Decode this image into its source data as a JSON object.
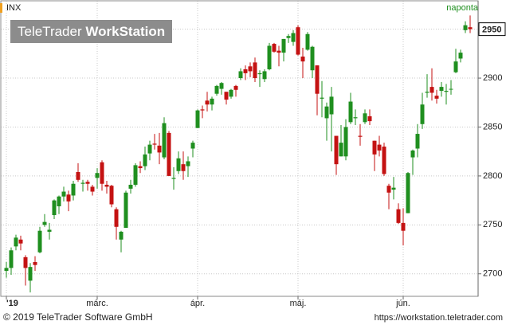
{
  "chart_data": {
    "type": "candlestick",
    "symbol": "INX",
    "interval": "naponta",
    "logo": [
      "TeleTrader",
      "WorkStation"
    ],
    "footer_left": "© 2019 TeleTrader Software GmbH",
    "footer_right": "https://workstation.teletrader.com",
    "up_color": "#1f8f1f",
    "down_color": "#c41212",
    "grid": true,
    "ylim": [
      2677,
      2979
    ],
    "yticks": [
      2700,
      2750,
      2800,
      2850,
      2900,
      2950
    ],
    "categories": [
      "'19",
      null,
      null,
      null,
      null,
      null,
      null,
      null,
      null,
      null,
      null,
      null,
      null,
      null,
      null,
      null,
      null,
      null,
      null,
      "márc.",
      null,
      null,
      null,
      null,
      null,
      null,
      null,
      null,
      null,
      null,
      null,
      null,
      null,
      null,
      null,
      null,
      null,
      null,
      null,
      null,
      "ápr.",
      null,
      null,
      null,
      null,
      null,
      null,
      null,
      null,
      null,
      null,
      null,
      null,
      null,
      null,
      null,
      null,
      null,
      null,
      null,
      null,
      "máj.",
      null,
      null,
      null,
      null,
      null,
      null,
      null,
      null,
      null,
      null,
      null,
      null,
      null,
      null,
      null,
      null,
      null,
      null,
      null,
      null,
      null,
      "jún.",
      null,
      null,
      null,
      null,
      null,
      null,
      null,
      null,
      null,
      null,
      null,
      null,
      null,
      null
    ],
    "open": [
      2703,
      2706,
      2728,
      2735,
      2717,
      2693,
      2712,
      2722,
      2750,
      2743,
      2760,
      2769,
      2779,
      2781,
      2780,
      2804,
      2792,
      2794,
      2789,
      2798,
      2814,
      2791,
      2790,
      2766,
      2735,
      2747,
      2787,
      2791,
      2810,
      2810,
      2823,
      2833,
      2831,
      2819,
      2844,
      2797,
      2805,
      2812,
      2810,
      2828,
      2849,
      2868,
      2877,
      2873,
      2884,
      2889,
      2886,
      2881,
      2892,
      2900,
      2909,
      2912,
      2916,
      2904,
      2899,
      2909,
      2935,
      2928,
      2926,
      2941,
      2937,
      2952,
      2922,
      2929,
      2908,
      2913,
      2879,
      2859,
      2863,
      2841,
      2820,
      2820,
      2855,
      2859,
      2841,
      2855,
      2861,
      2836,
      2832,
      2830,
      2790,
      2786,
      2766,
      2752,
      2762,
      2819,
      2828,
      2853,
      2885,
      2891,
      2882,
      2887,
      2886,
      2889,
      2906,
      2920,
      2949,
      2952
    ],
    "high": [
      2712,
      2727,
      2740,
      2739,
      2719,
      2711,
      2718,
      2748,
      2761,
      2752,
      2776,
      2780,
      2789,
      2785,
      2795,
      2813,
      2796,
      2796,
      2791,
      2808,
      2816,
      2795,
      2791,
      2768,
      2744,
      2785,
      2796,
      2813,
      2815,
      2830,
      2836,
      2843,
      2844,
      2860,
      2846,
      2809,
      2825,
      2825,
      2820,
      2836,
      2868,
      2872,
      2886,
      2881,
      2893,
      2896,
      2886,
      2889,
      2893,
      2910,
      2913,
      2916,
      2921,
      2908,
      2909,
      2936,
      2936,
      2933,
      2940,
      2945,
      2949,
      2954,
      2931,
      2947,
      2933,
      2913,
      2897,
      2875,
      2891,
      2841,
      2852,
      2858,
      2885,
      2868,
      2853,
      2868,
      2868,
      2836,
      2841,
      2834,
      2792,
      2799,
      2772,
      2767,
      2804,
      2827,
      2853,
      2885,
      2904,
      2910,
      2888,
      2896,
      2894,
      2898,
      2930,
      2929,
      2958,
      2964
    ],
    "low": [
      2696,
      2699,
      2724,
      2724,
      2688,
      2681,
      2703,
      2721,
      2748,
      2735,
      2756,
      2761,
      2774,
      2764,
      2775,
      2794,
      2784,
      2785,
      2780,
      2787,
      2785,
      2782,
      2768,
      2735,
      2722,
      2747,
      2782,
      2789,
      2803,
      2806,
      2816,
      2827,
      2812,
      2817,
      2800,
      2786,
      2802,
      2796,
      2799,
      2819,
      2849,
      2859,
      2866,
      2867,
      2882,
      2883,
      2873,
      2879,
      2881,
      2898,
      2898,
      2901,
      2896,
      2891,
      2896,
      2908,
      2926,
      2912,
      2917,
      2936,
      2933,
      2923,
      2900,
      2928,
      2900,
      2862,
      2860,
      2836,
      2825,
      2801,
      2820,
      2816,
      2853,
      2852,
      2831,
      2853,
      2852,
      2805,
      2820,
      2800,
      2766,
      2776,
      2751,
      2729,
      2762,
      2801,
      2819,
      2848,
      2880,
      2877,
      2874,
      2881,
      2873,
      2883,
      2905,
      2916,
      2946,
      2946
    ],
    "close": [
      2706,
      2724,
      2737,
      2731,
      2706,
      2707,
      2709,
      2744,
      2753,
      2745,
      2775,
      2779,
      2784,
      2774,
      2792,
      2796,
      2793,
      2792,
      2784,
      2803,
      2792,
      2789,
      2771,
      2748,
      2743,
      2783,
      2791,
      2811,
      2808,
      2822,
      2832,
      2832,
      2824,
      2854,
      2800,
      2798,
      2818,
      2805,
      2815,
      2834,
      2867,
      2867,
      2873,
      2879,
      2892,
      2895,
      2878,
      2888,
      2888,
      2907,
      2905,
      2907,
      2900,
      2905,
      2907,
      2933,
      2927,
      2926,
      2940,
      2943,
      2946,
      2924,
      2917,
      2945,
      2932,
      2884,
      2880,
      2871,
      2881,
      2812,
      2834,
      2850,
      2876,
      2860,
      2840,
      2864,
      2856,
      2822,
      2826,
      2802,
      2783,
      2788,
      2752,
      2744,
      2803,
      2826,
      2843,
      2873,
      2886,
      2885,
      2879,
      2891,
      2887,
      2889,
      2917,
      2926,
      2954,
      2950
    ]
  }
}
